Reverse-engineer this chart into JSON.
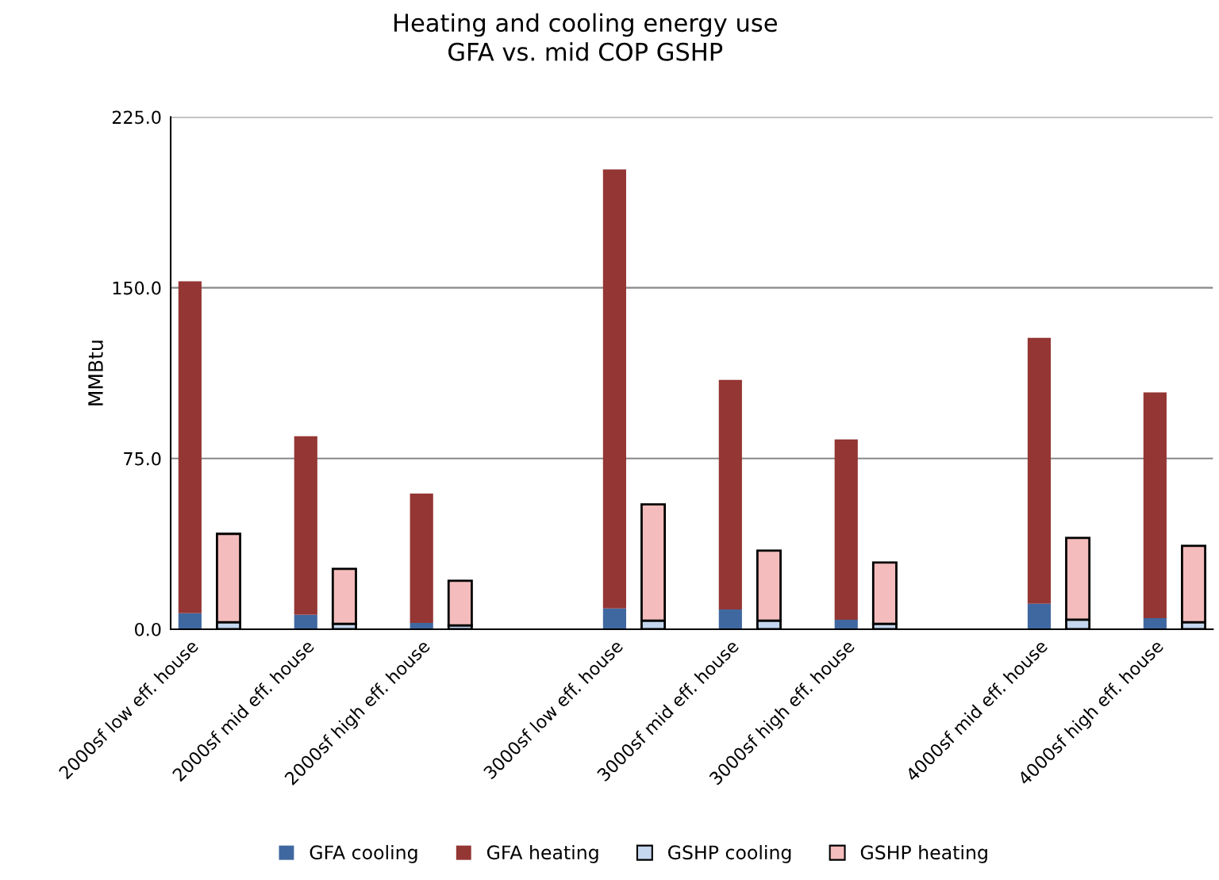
{
  "chart_data": {
    "type": "bar",
    "title": "Heating and cooling energy use\nGFA vs. mid COP GSHP",
    "ylabel": "MMBtu",
    "categories": [
      "2000sf low eff. house",
      null,
      null,
      "2000sf mid eff. house",
      null,
      null,
      "2000sf high eff. house",
      null,
      null,
      null,
      null,
      "3000sf low eff. house",
      null,
      null,
      "3000sf mid eff. house",
      null,
      null,
      "3000sf high eff. house",
      null,
      null,
      null,
      null,
      "4000sf mid eff. house",
      null,
      null,
      "4000sf high eff. house",
      null
    ],
    "stacked": true,
    "series": [
      {
        "name": "GFA cooling",
        "color": "#4068a0",
        "values": [
          7.0,
          null,
          null,
          6.3,
          null,
          null,
          2.8,
          null,
          null,
          null,
          null,
          9.1,
          null,
          null,
          8.7,
          null,
          null,
          4.2,
          null,
          null,
          null,
          null,
          11.2,
          null,
          null,
          4.9,
          null
        ]
      },
      {
        "name": "GFA heating",
        "color": "#943634",
        "values": [
          145.8,
          null,
          null,
          78.5,
          null,
          null,
          56.8,
          null,
          null,
          null,
          null,
          192.9,
          null,
          null,
          100.8,
          null,
          null,
          79.2,
          null,
          null,
          null,
          null,
          116.8,
          null,
          null,
          99.1,
          null
        ]
      },
      {
        "name": "GSHP cooling",
        "color": "#c5d7ee",
        "values": [
          null,
          3.1,
          null,
          null,
          2.4,
          null,
          null,
          1.7,
          null,
          null,
          null,
          null,
          3.8,
          null,
          null,
          3.8,
          null,
          null,
          2.4,
          null,
          null,
          null,
          null,
          4.2,
          null,
          null,
          3.1
        ]
      },
      {
        "name": "GSHP heating",
        "color": "#f4bcbc",
        "values": [
          null,
          38.8,
          null,
          null,
          24.1,
          null,
          null,
          19.6,
          null,
          null,
          null,
          null,
          51.0,
          null,
          null,
          30.7,
          null,
          null,
          26.9,
          null,
          null,
          null,
          null,
          35.9,
          null,
          null,
          33.5
        ]
      }
    ],
    "ylim": [
      0,
      225
    ],
    "yticks": [
      {
        "value": 0,
        "label": "0.0"
      },
      {
        "value": 75,
        "label": "75.0"
      },
      {
        "value": 150,
        "label": "150.0"
      },
      {
        "value": 225,
        "label": "225.0"
      }
    ],
    "grid": "y",
    "legend": "bottom"
  }
}
